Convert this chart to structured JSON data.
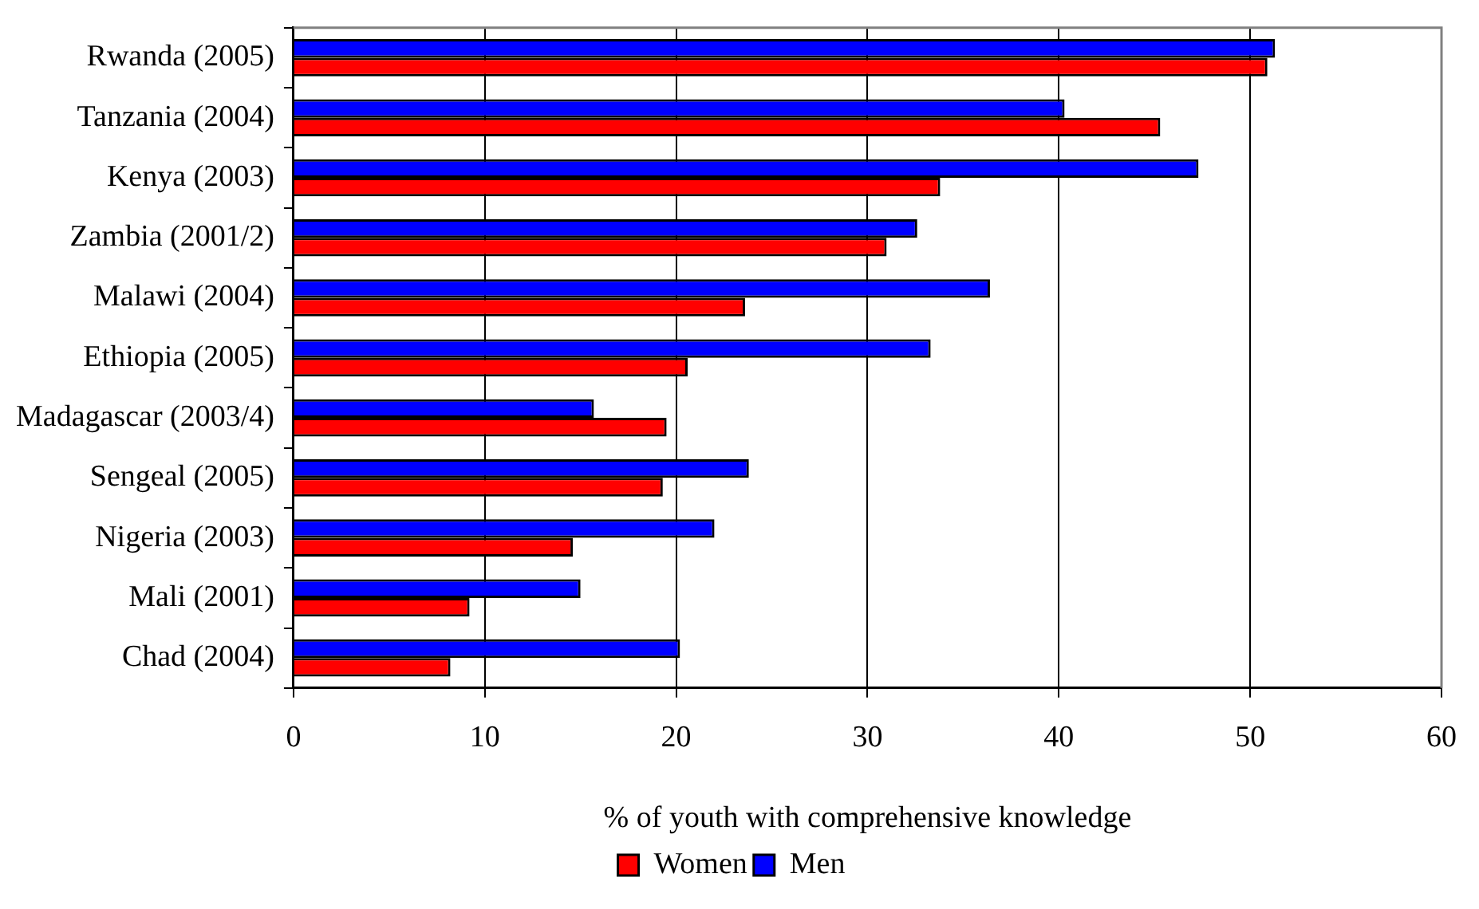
{
  "chart_data": {
    "type": "bar",
    "orientation": "horizontal",
    "categories": [
      "Rwanda (2005)",
      "Tanzania (2004)",
      "Kenya (2003)",
      "Zambia (2001/2)",
      "Malawi (2004)",
      "Ethiopia (2005)",
      "Madagascar (2003/4)",
      "Sengeal (2005)",
      "Nigeria (2003)",
      "Mali (2001)",
      "Chad (2004)"
    ],
    "series": [
      {
        "name": "Women",
        "color": "#ff0000",
        "values": [
          50.9,
          45.3,
          33.8,
          31.0,
          23.6,
          20.6,
          19.5,
          19.3,
          14.6,
          9.2,
          8.2
        ]
      },
      {
        "name": "Men",
        "color": "#0000ff",
        "values": [
          51.3,
          40.3,
          47.3,
          32.6,
          36.4,
          33.3,
          15.7,
          23.8,
          22.0,
          15.0,
          20.2
        ]
      }
    ],
    "xlabel": "% of youth with comprehensive knowledge",
    "xlim": [
      0,
      60
    ],
    "xticks": [
      0,
      10,
      20,
      30,
      40,
      50,
      60
    ],
    "grid": "x",
    "legend": "bottom"
  }
}
